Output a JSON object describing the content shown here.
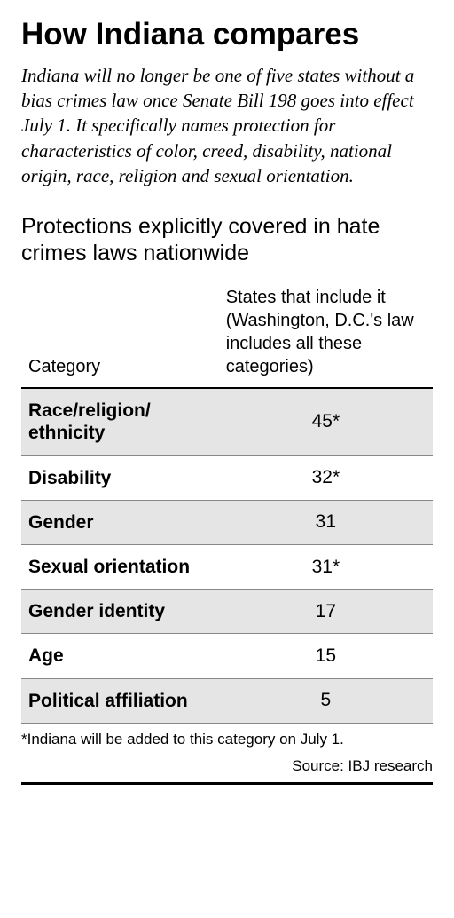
{
  "title": "How Indiana compares",
  "subtitle": "Indiana will no longer be one of five states without a bias crimes law once Senate Bill 198 goes into effect July 1. It specifically names protection for characteristics of color, creed, disability, national origin, race, religion and sexual orientation.",
  "section_heading": "Protections explicitly covered in hate crimes laws nationwide",
  "table": {
    "columns": [
      "Category",
      "States that include it (Washington, D.C.'s law includes all these categories)"
    ],
    "rows": [
      {
        "category": "Race/religion/\nethnicity",
        "value": "45*"
      },
      {
        "category": "Disability",
        "value": "32*"
      },
      {
        "category": "Gender",
        "value": "31"
      },
      {
        "category": "Sexual orientation",
        "value": "31*"
      },
      {
        "category": "Gender identity",
        "value": "17"
      },
      {
        "category": "Age",
        "value": "15"
      },
      {
        "category": "Political affiliation",
        "value": "5"
      }
    ],
    "header_fontsize": 20,
    "cell_fontsize": 21,
    "odd_row_bg": "#e5e5e5",
    "even_row_bg": "#ffffff",
    "border_color": "#000000",
    "row_border_color": "#888888"
  },
  "footnote": "*Indiana will be added to this category on July 1.",
  "source": "Source: IBJ research",
  "colors": {
    "text": "#000000",
    "background": "#ffffff"
  }
}
